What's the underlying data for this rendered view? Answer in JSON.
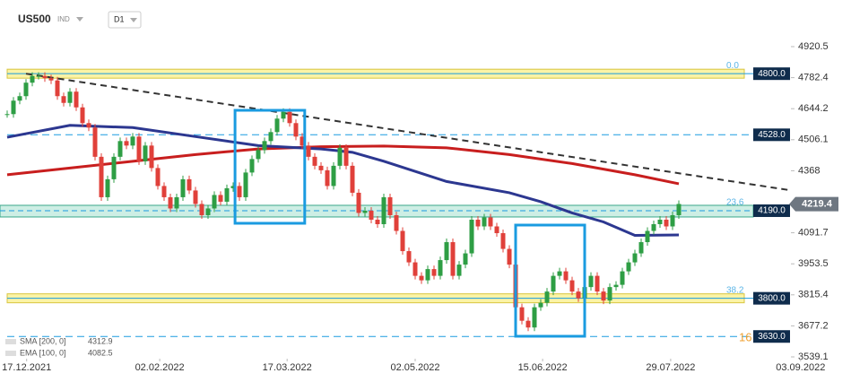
{
  "header": {
    "symbol": "US500",
    "market": "IND",
    "interval": "D1"
  },
  "chart_data": {
    "type": "candlestick",
    "closes": [
      4620,
      4680,
      4700,
      4760,
      4790,
      4790,
      4780,
      4770,
      4700,
      4670,
      4720,
      4650,
      4580,
      4560,
      4430,
      4250,
      4330,
      4430,
      4500,
      4480,
      4520,
      4410,
      4480,
      4380,
      4300,
      4250,
      4200,
      4250,
      4330,
      4280,
      4220,
      4170,
      4200,
      4260,
      4230,
      4290,
      4300,
      4250,
      4360,
      4420,
      4460,
      4500,
      4540,
      4600,
      4630,
      4580,
      4520,
      4480,
      4430,
      4390,
      4370,
      4300,
      4390,
      4470,
      4390,
      4270,
      4180,
      4190,
      4150,
      4130,
      4250,
      4170,
      4100,
      4010,
      3960,
      3900,
      3880,
      3930,
      3900,
      3970,
      4050,
      3900,
      3950,
      4000,
      4150,
      4120,
      4160,
      4120,
      4090,
      4020,
      3950,
      3760,
      3700,
      3670,
      3760,
      3780,
      3830,
      3900,
      3920,
      3880,
      3830,
      3800,
      3850,
      3900,
      3830,
      3790,
      3850,
      3860,
      3920,
      3960,
      4000,
      4050,
      4100,
      4130,
      4150,
      4120,
      4170,
      4220
    ],
    "up_color": "#2e9e44",
    "down_color": "#e0403a",
    "series": [
      {
        "name": "SMA [200, 0]",
        "last": 4312.9,
        "color": "#c81e1e",
        "x": [
          0,
          10,
          20,
          30,
          40,
          50,
          60,
          70,
          80,
          90,
          100,
          107
        ],
        "values": [
          4350,
          4380,
          4410,
          4440,
          4465,
          4475,
          4478,
          4470,
          4440,
          4400,
          4350,
          4310
        ]
      },
      {
        "name": "EMA [100, 0]",
        "last": 4082.5,
        "color": "#2c3790",
        "x": [
          0,
          10,
          20,
          30,
          40,
          50,
          55,
          60,
          70,
          80,
          85,
          90,
          95,
          100,
          107
        ],
        "values": [
          4517,
          4570,
          4560,
          4520,
          4480,
          4465,
          4450,
          4410,
          4320,
          4270,
          4230,
          4180,
          4140,
          4080,
          4082
        ]
      }
    ],
    "trendline": {
      "x": [
        3,
        125
      ],
      "values": [
        4800,
        4280
      ],
      "color": "#333333"
    },
    "boxes": [
      {
        "x": [
          36.3,
          47.4
        ],
        "values": [
          4637,
          4134
        ]
      },
      {
        "x": [
          81,
          92
        ],
        "values": [
          4126,
          3631
        ]
      }
    ],
    "box_color": "#1a9be0",
    "levels": [
      {
        "value": 4800,
        "label": "4800.0",
        "fib": "0.0",
        "style": "yellow-zone"
      },
      {
        "value": 4528,
        "label": "4528.0",
        "style": "dashed"
      },
      {
        "value": 4190,
        "label": "4190.0",
        "fib": "23.6",
        "style": "cyan-zone"
      },
      {
        "value": 3800,
        "label": "3800.0",
        "fib": "38.2",
        "style": "yellow-zone"
      },
      {
        "value": 3630,
        "label": "3630.0",
        "fib": "16",
        "style": "dashed"
      }
    ],
    "last_price": 4219.4,
    "xlim": [
      -1,
      134
    ],
    "xticks": [
      {
        "value": 3.1,
        "label": "17.12.2021"
      },
      {
        "value": 24.3,
        "label": "02.02.2022"
      },
      {
        "value": 44.6,
        "label": "17.03.2022"
      },
      {
        "value": 65,
        "label": "02.05.2022"
      },
      {
        "value": 85.3,
        "label": "15.06.2022"
      },
      {
        "value": 105.7,
        "label": "29.07.2022"
      },
      {
        "value": 126.4,
        "label": "03.09.2022"
      }
    ],
    "ylim": [
      3539.1,
      4920.5
    ],
    "yticks": [
      4920.5,
      4782.4,
      4644.2,
      4506.1,
      4368.0,
      4091.7,
      3953.5,
      3815.4,
      3677.2,
      3539.1
    ]
  }
}
